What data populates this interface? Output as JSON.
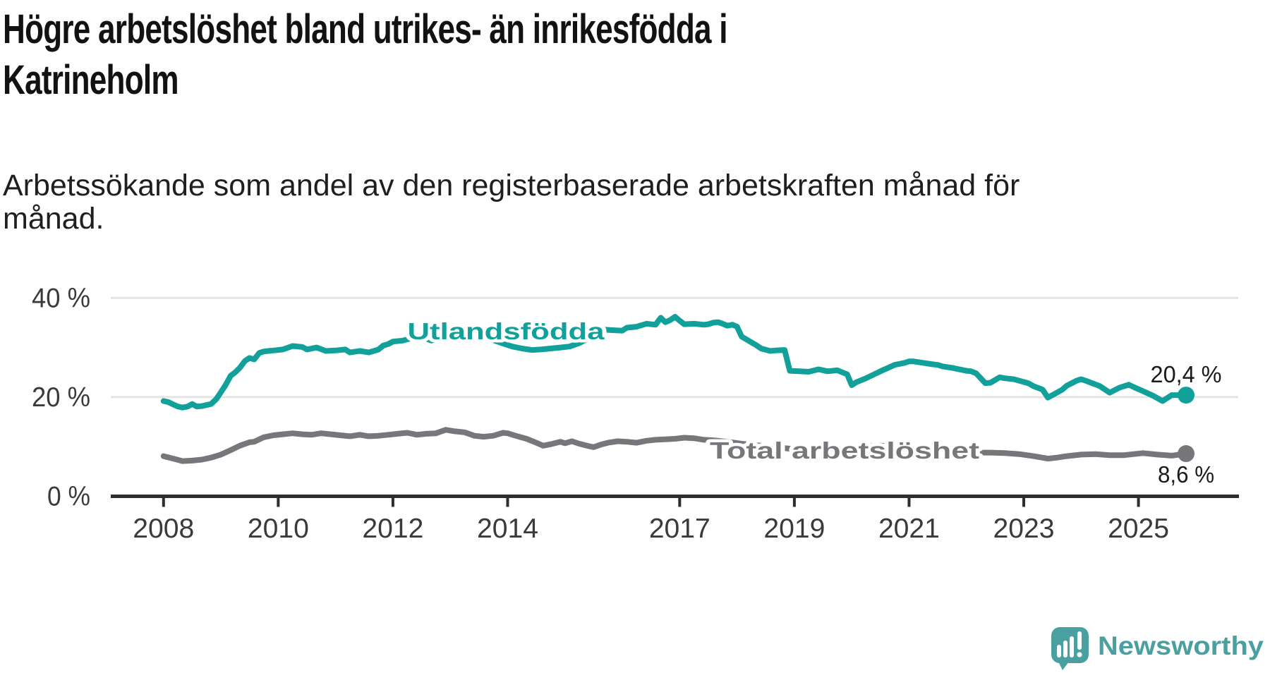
{
  "header": {
    "title": "Högre arbetslöshet bland utrikes- än inrikesfödda i Katrineholm",
    "title_line1": "Högre arbetslöshet bland utrikes- än inrikesfödda i",
    "title_line2": "Katrineholm",
    "subtitle": "Arbetssökande som andel av den registerbaserade arbetskraften månad för månad.",
    "subtitle_line1": "Arbetssökande som andel av den registerbaserade arbetskraften månad för",
    "subtitle_line2": "månad."
  },
  "branding": {
    "logo_text": "Newsworthy",
    "logo_color": "#4AA0A1",
    "logo_icon": "speech-bubble-with-bar-chart-and-exclamation"
  },
  "chart_data": {
    "type": "line",
    "title": "Högre arbetslöshet bland utrikes- än inrikesfödda i Katrineholm",
    "xlabel": "",
    "ylabel": "",
    "x_ticks": [
      2008,
      2010,
      2012,
      2014,
      2017,
      2019,
      2021,
      2023,
      2025
    ],
    "y_ticks": [
      {
        "value": 0,
        "label": "0 %"
      },
      {
        "value": 20,
        "label": "20 %"
      },
      {
        "value": 40,
        "label": "40 %"
      }
    ],
    "xlim": [
      2007.08,
      2026.74
    ],
    "ylim": [
      0,
      43
    ],
    "grid": "horizontal-only",
    "colors": {
      "axis": "#2d2d2d",
      "grid": "#e4e4e4",
      "tick_text": "#3a3a3a",
      "value_text": "#1a1a1a"
    },
    "series": [
      {
        "id": "utlandsfodda",
        "name": "Utlandsfödda",
        "color": "#12A19A",
        "end_label": "20,4 %",
        "end_value": 20.4,
        "points": [
          [
            2008.0,
            19.2
          ],
          [
            2008.08,
            19.0
          ],
          [
            2008.17,
            18.5
          ],
          [
            2008.25,
            18.1
          ],
          [
            2008.33,
            17.9
          ],
          [
            2008.42,
            18.1
          ],
          [
            2008.5,
            18.6
          ],
          [
            2008.58,
            18.1
          ],
          [
            2008.67,
            18.2
          ],
          [
            2008.75,
            18.4
          ],
          [
            2008.83,
            18.6
          ],
          [
            2008.92,
            19.6
          ],
          [
            2009.0,
            21.0
          ],
          [
            2009.08,
            22.4
          ],
          [
            2009.17,
            24.3
          ],
          [
            2009.25,
            25.0
          ],
          [
            2009.33,
            25.9
          ],
          [
            2009.42,
            27.3
          ],
          [
            2009.5,
            27.9
          ],
          [
            2009.58,
            27.6
          ],
          [
            2009.67,
            28.9
          ],
          [
            2009.75,
            29.2
          ],
          [
            2009.83,
            29.3
          ],
          [
            2009.92,
            29.4
          ],
          [
            2010.08,
            29.6
          ],
          [
            2010.25,
            30.3
          ],
          [
            2010.42,
            30.1
          ],
          [
            2010.5,
            29.6
          ],
          [
            2010.67,
            30.0
          ],
          [
            2010.83,
            29.3
          ],
          [
            2011.0,
            29.4
          ],
          [
            2011.17,
            29.6
          ],
          [
            2011.25,
            29.0
          ],
          [
            2011.42,
            29.3
          ],
          [
            2011.58,
            29.0
          ],
          [
            2011.75,
            29.6
          ],
          [
            2011.83,
            30.4
          ],
          [
            2011.92,
            30.7
          ],
          [
            2012.0,
            31.2
          ],
          [
            2012.17,
            31.4
          ],
          [
            2012.33,
            31.9
          ],
          [
            2012.42,
            32.1
          ],
          [
            2012.58,
            31.8
          ],
          [
            2012.67,
            31.4
          ],
          [
            2012.83,
            31.9
          ],
          [
            2012.92,
            32.3
          ],
          [
            2013.08,
            32.6
          ],
          [
            2013.17,
            32.8
          ],
          [
            2013.33,
            32.2
          ],
          [
            2013.42,
            32.0
          ],
          [
            2013.58,
            32.3
          ],
          [
            2013.75,
            31.5
          ],
          [
            2013.92,
            30.8
          ],
          [
            2014.08,
            30.2
          ],
          [
            2014.25,
            29.8
          ],
          [
            2014.42,
            29.5
          ],
          [
            2014.58,
            29.6
          ],
          [
            2014.75,
            29.8
          ],
          [
            2014.92,
            30.0
          ],
          [
            2015.08,
            30.2
          ],
          [
            2015.25,
            30.9
          ],
          [
            2015.42,
            31.9
          ],
          [
            2015.58,
            33.0
          ],
          [
            2015.67,
            33.6
          ],
          [
            2015.83,
            33.5
          ],
          [
            2016.0,
            33.4
          ],
          [
            2016.08,
            34.0
          ],
          [
            2016.25,
            34.2
          ],
          [
            2016.42,
            34.8
          ],
          [
            2016.58,
            34.6
          ],
          [
            2016.67,
            36.0
          ],
          [
            2016.75,
            35.1
          ],
          [
            2016.83,
            35.5
          ],
          [
            2016.92,
            36.2
          ],
          [
            2017.0,
            35.4
          ],
          [
            2017.08,
            34.7
          ],
          [
            2017.25,
            34.8
          ],
          [
            2017.42,
            34.6
          ],
          [
            2017.5,
            34.7
          ],
          [
            2017.58,
            35.0
          ],
          [
            2017.67,
            35.1
          ],
          [
            2017.75,
            34.8
          ],
          [
            2017.83,
            34.4
          ],
          [
            2017.92,
            34.6
          ],
          [
            2018.0,
            34.2
          ],
          [
            2018.08,
            32.2
          ],
          [
            2018.17,
            31.6
          ],
          [
            2018.33,
            30.5
          ],
          [
            2018.42,
            29.8
          ],
          [
            2018.58,
            29.3
          ],
          [
            2018.67,
            29.4
          ],
          [
            2018.83,
            29.5
          ],
          [
            2018.92,
            25.3
          ],
          [
            2019.08,
            25.2
          ],
          [
            2019.25,
            25.1
          ],
          [
            2019.42,
            25.6
          ],
          [
            2019.58,
            25.2
          ],
          [
            2019.75,
            25.4
          ],
          [
            2019.92,
            24.6
          ],
          [
            2020.0,
            22.4
          ],
          [
            2020.08,
            23.0
          ],
          [
            2020.25,
            23.8
          ],
          [
            2020.5,
            25.2
          ],
          [
            2020.75,
            26.5
          ],
          [
            2020.92,
            26.9
          ],
          [
            2021.0,
            27.2
          ],
          [
            2021.08,
            27.2
          ],
          [
            2021.25,
            26.9
          ],
          [
            2021.42,
            26.6
          ],
          [
            2021.5,
            26.5
          ],
          [
            2021.58,
            26.2
          ],
          [
            2021.75,
            25.9
          ],
          [
            2021.83,
            25.7
          ],
          [
            2022.0,
            25.3
          ],
          [
            2022.08,
            25.2
          ],
          [
            2022.17,
            24.8
          ],
          [
            2022.33,
            22.8
          ],
          [
            2022.42,
            22.9
          ],
          [
            2022.58,
            24.0
          ],
          [
            2022.67,
            23.8
          ],
          [
            2022.83,
            23.6
          ],
          [
            2022.92,
            23.3
          ],
          [
            2023.08,
            22.8
          ],
          [
            2023.17,
            22.2
          ],
          [
            2023.33,
            21.5
          ],
          [
            2023.42,
            19.9
          ],
          [
            2023.5,
            20.4
          ],
          [
            2023.67,
            21.5
          ],
          [
            2023.75,
            22.3
          ],
          [
            2023.92,
            23.3
          ],
          [
            2024.0,
            23.6
          ],
          [
            2024.08,
            23.3
          ],
          [
            2024.17,
            22.9
          ],
          [
            2024.33,
            22.2
          ],
          [
            2024.42,
            21.5
          ],
          [
            2024.5,
            20.9
          ],
          [
            2024.67,
            21.9
          ],
          [
            2024.83,
            22.5
          ],
          [
            2024.92,
            22.0
          ],
          [
            2025.08,
            21.2
          ],
          [
            2025.25,
            20.3
          ],
          [
            2025.42,
            19.2
          ],
          [
            2025.58,
            20.4
          ],
          [
            2025.83,
            20.4
          ]
        ]
      },
      {
        "id": "total",
        "name": "Total arbetslöshet",
        "color": "#76767B",
        "end_label": "8,6 %",
        "end_value": 8.6,
        "points": [
          [
            2008.0,
            8.1
          ],
          [
            2008.17,
            7.6
          ],
          [
            2008.33,
            7.1
          ],
          [
            2008.5,
            7.2
          ],
          [
            2008.67,
            7.4
          ],
          [
            2008.83,
            7.8
          ],
          [
            2009.0,
            8.4
          ],
          [
            2009.17,
            9.3
          ],
          [
            2009.33,
            10.2
          ],
          [
            2009.5,
            10.9
          ],
          [
            2009.58,
            11.0
          ],
          [
            2009.75,
            11.9
          ],
          [
            2009.92,
            12.3
          ],
          [
            2010.08,
            12.5
          ],
          [
            2010.25,
            12.7
          ],
          [
            2010.42,
            12.5
          ],
          [
            2010.58,
            12.4
          ],
          [
            2010.75,
            12.7
          ],
          [
            2010.92,
            12.5
          ],
          [
            2011.08,
            12.3
          ],
          [
            2011.25,
            12.1
          ],
          [
            2011.42,
            12.4
          ],
          [
            2011.58,
            12.1
          ],
          [
            2011.75,
            12.2
          ],
          [
            2011.92,
            12.4
          ],
          [
            2012.08,
            12.6
          ],
          [
            2012.25,
            12.8
          ],
          [
            2012.42,
            12.4
          ],
          [
            2012.58,
            12.6
          ],
          [
            2012.75,
            12.7
          ],
          [
            2012.92,
            13.4
          ],
          [
            2013.08,
            13.1
          ],
          [
            2013.25,
            12.9
          ],
          [
            2013.42,
            12.2
          ],
          [
            2013.58,
            12.0
          ],
          [
            2013.75,
            12.2
          ],
          [
            2013.92,
            12.8
          ],
          [
            2014.0,
            12.7
          ],
          [
            2014.17,
            12.1
          ],
          [
            2014.33,
            11.6
          ],
          [
            2014.5,
            10.8
          ],
          [
            2014.62,
            10.2
          ],
          [
            2014.75,
            10.5
          ],
          [
            2014.92,
            11.0
          ],
          [
            2015.0,
            10.7
          ],
          [
            2015.12,
            11.1
          ],
          [
            2015.25,
            10.6
          ],
          [
            2015.42,
            10.1
          ],
          [
            2015.5,
            9.9
          ],
          [
            2015.62,
            10.4
          ],
          [
            2015.75,
            10.8
          ],
          [
            2015.92,
            11.1
          ],
          [
            2016.08,
            11.0
          ],
          [
            2016.25,
            10.8
          ],
          [
            2016.42,
            11.2
          ],
          [
            2016.58,
            11.4
          ],
          [
            2016.75,
            11.5
          ],
          [
            2016.92,
            11.6
          ],
          [
            2017.08,
            11.8
          ],
          [
            2017.25,
            11.7
          ],
          [
            2017.42,
            11.4
          ],
          [
            2017.58,
            11.3
          ],
          [
            2017.83,
            11.0
          ],
          [
            2018.08,
            10.6
          ],
          [
            2018.42,
            10.2
          ],
          [
            2018.75,
            9.8
          ],
          [
            2019.08,
            9.4
          ],
          [
            2019.42,
            9.1
          ],
          [
            2019.75,
            9.0
          ],
          [
            2020.0,
            9.4
          ],
          [
            2020.25,
            10.0
          ],
          [
            2020.5,
            10.2
          ],
          [
            2020.75,
            10.0
          ],
          [
            2021.0,
            9.7
          ],
          [
            2021.33,
            9.3
          ],
          [
            2021.67,
            9.0
          ],
          [
            2022.0,
            8.9
          ],
          [
            2022.17,
            8.8
          ],
          [
            2022.42,
            8.8
          ],
          [
            2022.67,
            8.7
          ],
          [
            2022.92,
            8.5
          ],
          [
            2023.17,
            8.1
          ],
          [
            2023.42,
            7.6
          ],
          [
            2023.58,
            7.8
          ],
          [
            2023.75,
            8.1
          ],
          [
            2024.0,
            8.4
          ],
          [
            2024.25,
            8.5
          ],
          [
            2024.5,
            8.3
          ],
          [
            2024.75,
            8.3
          ],
          [
            2024.92,
            8.5
          ],
          [
            2025.08,
            8.7
          ],
          [
            2025.33,
            8.4
          ],
          [
            2025.58,
            8.2
          ],
          [
            2025.83,
            8.6
          ]
        ]
      }
    ],
    "legend_position": "inline-labels-on-lines"
  }
}
